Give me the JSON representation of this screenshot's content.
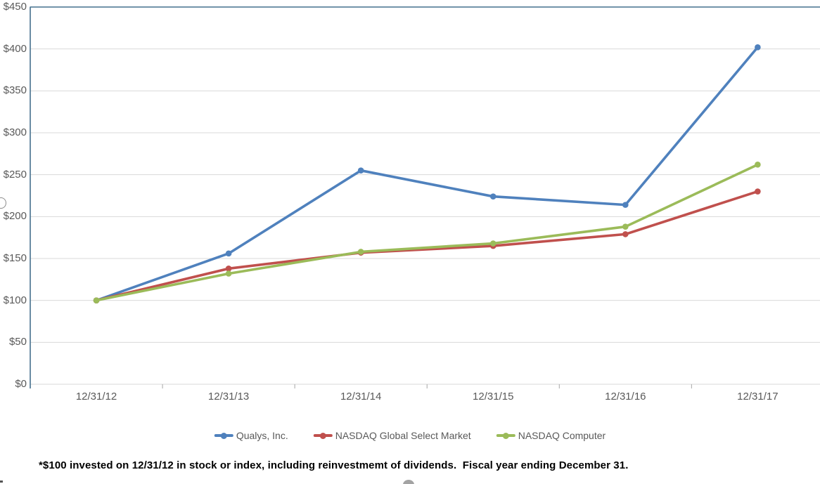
{
  "footnote": "*$100 invested on 12/31/12 in stock or index, including reinvestmemt of dividends.  Fiscal year ending December 31.",
  "colors": {
    "plot_border": "#44708e",
    "gridline": "#d9d9d9",
    "tick": "#a6a6a6",
    "axis_label": "#595959",
    "legend_text": "#595959",
    "footnote_text": "#000000",
    "series_qualys": "#4F81BD",
    "series_nasdaq_global_select": "#C0504D",
    "series_nasdaq_computer": "#9BBB59"
  },
  "chart_data": {
    "type": "line",
    "title": "",
    "xlabel": "",
    "ylabel": "",
    "grid": true,
    "legend_position": "bottom",
    "categories": [
      "12/31/12",
      "12/31/13",
      "12/31/14",
      "12/31/15",
      "12/31/16",
      "12/31/17"
    ],
    "series": [
      {
        "name": "Qualys, Inc.",
        "color": "#4F81BD",
        "values": [
          100,
          156,
          255,
          224,
          214,
          402
        ]
      },
      {
        "name": "NASDAQ Global Select Market",
        "color": "#C0504D",
        "values": [
          100,
          138,
          157,
          165,
          179,
          230
        ]
      },
      {
        "name": "NASDAQ Computer",
        "color": "#9BBB59",
        "values": [
          100,
          132,
          158,
          168,
          188,
          262
        ]
      }
    ],
    "ylim": [
      0,
      450
    ],
    "y_step": 50,
    "y_tick_labels": [
      "$0",
      "$50",
      "$100",
      "$150",
      "$200",
      "$250",
      "$300",
      "$350",
      "$400",
      "$450"
    ]
  }
}
